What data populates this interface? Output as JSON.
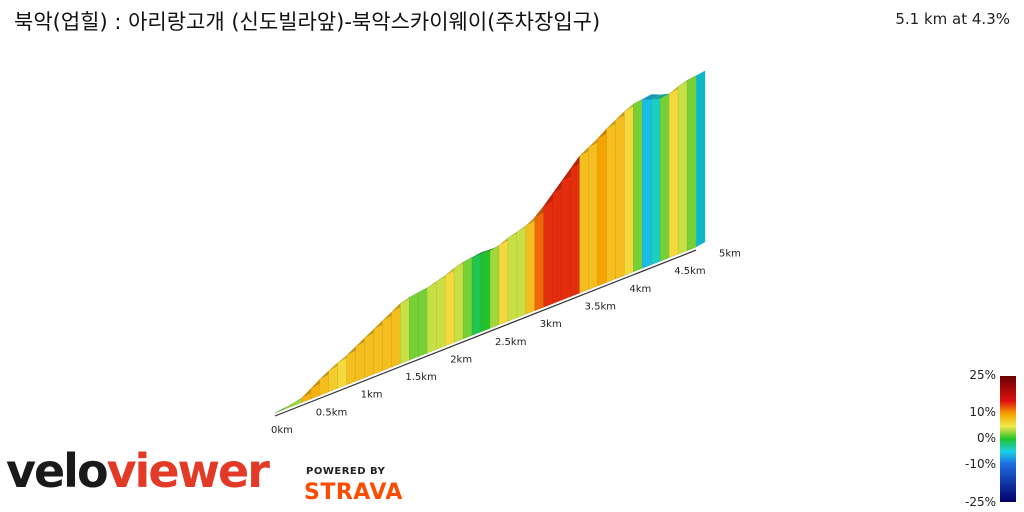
{
  "header": {
    "title": "북악(업힐) : 아리랑고개 (신도빌라앞)-북악스카이웨이(주차장입구)",
    "stats": "5.1 km at 4.3%"
  },
  "legend": {
    "labels": [
      "25%",
      "10%",
      "0%",
      "-10%",
      "-25%"
    ],
    "stops": [
      {
        "value": 25,
        "color": "#6a0000"
      },
      {
        "value": 15,
        "color": "#e01010"
      },
      {
        "value": 10,
        "color": "#f5a300"
      },
      {
        "value": 5,
        "color": "#f3e74a"
      },
      {
        "value": 0,
        "color": "#22c22a"
      },
      {
        "value": -5,
        "color": "#1ad0e8"
      },
      {
        "value": -10,
        "color": "#1e6be0"
      },
      {
        "value": -25,
        "color": "#00006a"
      }
    ]
  },
  "branding": {
    "logo_velo": "velo",
    "logo_viewer": "viewer",
    "powered_by": "POWERED BY",
    "strava": "STRAVA"
  },
  "chart_data": {
    "type": "area",
    "title": "북악(업힐) : 아리랑고개 (신도빌라앞)-북악스카이웨이(주차장입구)",
    "xlabel": "",
    "ylabel": "",
    "distance_km": 5.1,
    "average_grade_pct": 4.3,
    "x_ticks": [
      "0km",
      "0.5km",
      "1km",
      "1.5km",
      "2km",
      "2.5km",
      "3km",
      "3.5km",
      "4km",
      "4.5km",
      "5km"
    ],
    "x_tick_values": [
      0,
      0.5,
      1,
      1.5,
      2,
      2.5,
      3,
      3.5,
      4,
      4.5,
      5
    ],
    "elevation_profile_m": [
      [
        0.0,
        0
      ],
      [
        0.1,
        1
      ],
      [
        0.2,
        4
      ],
      [
        0.3,
        7
      ],
      [
        0.4,
        16
      ],
      [
        0.5,
        25
      ],
      [
        0.6,
        33
      ],
      [
        0.7,
        40
      ],
      [
        0.8,
        46
      ],
      [
        0.9,
        54
      ],
      [
        1.0,
        62
      ],
      [
        1.1,
        70
      ],
      [
        1.2,
        78
      ],
      [
        1.3,
        86
      ],
      [
        1.4,
        94
      ],
      [
        1.5,
        98
      ],
      [
        1.6,
        100
      ],
      [
        1.7,
        102
      ],
      [
        1.8,
        106
      ],
      [
        1.9,
        110
      ],
      [
        2.0,
        116
      ],
      [
        2.1,
        120
      ],
      [
        2.2,
        122
      ],
      [
        2.3,
        121
      ],
      [
        2.4,
        121
      ],
      [
        2.5,
        124
      ],
      [
        2.6,
        130
      ],
      [
        2.7,
        134
      ],
      [
        2.8,
        138
      ],
      [
        2.9,
        146
      ],
      [
        3.0,
        158
      ],
      [
        3.1,
        172
      ],
      [
        3.2,
        186
      ],
      [
        3.3,
        200
      ],
      [
        3.4,
        214
      ],
      [
        3.5,
        222
      ],
      [
        3.6,
        230
      ],
      [
        3.7,
        240
      ],
      [
        3.8,
        248
      ],
      [
        3.9,
        256
      ],
      [
        4.0,
        262
      ],
      [
        4.1,
        264
      ],
      [
        4.2,
        258
      ],
      [
        4.3,
        254
      ],
      [
        4.4,
        256
      ],
      [
        4.5,
        262
      ],
      [
        4.6,
        266
      ],
      [
        4.7,
        268
      ]
    ],
    "grade_colorscale_pct": [
      -25,
      25
    ]
  }
}
